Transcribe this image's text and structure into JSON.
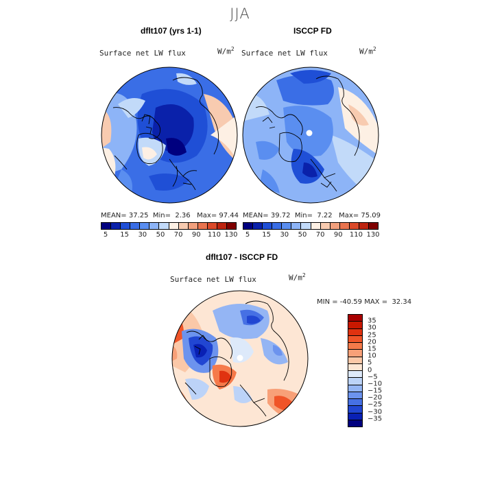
{
  "figure": {
    "season_title": "JJA"
  },
  "panels": [
    {
      "title": "dflt107 (yrs 1-1)",
      "field": "Surface net LW flux",
      "units": "W/m",
      "units_exp": "2",
      "stats": {
        "mean_label": "MEAN=",
        "mean": "37.25",
        "min_label": "Min=",
        "min": "2.36",
        "max_label": "Max=",
        "max": "97.44"
      }
    },
    {
      "title": "ISCCP FD",
      "field": "Surface net LW flux",
      "units": "W/m",
      "units_exp": "2",
      "stats": {
        "mean_label": "MEAN=",
        "mean": "39.72",
        "min_label": "Min=",
        "min": "7.22",
        "max_label": "Max=",
        "max": "75.09"
      }
    }
  ],
  "diff_panel": {
    "title": "dflt107 - ISCCP FD",
    "field": "Surface net LW flux",
    "units": "W/m",
    "units_exp": "2",
    "range_text": "MIN = -40.59 MAX =  32.34"
  },
  "colorbar_main": {
    "colors": [
      "#00007f",
      "#0a21aa",
      "#1f4fd6",
      "#3a6ee6",
      "#5a8ef0",
      "#8db4f7",
      "#c2daf9",
      "#fdf0e4",
      "#f8cbb0",
      "#f2a07d",
      "#ea744f",
      "#dc4a2a",
      "#bd2410",
      "#7f0000"
    ],
    "tick_labels": [
      "5",
      "15",
      "30",
      "50",
      "70",
      "90",
      "110",
      "130"
    ]
  },
  "colorbar_diff": {
    "colors_top_to_bottom": [
      "#a80000",
      "#c81800",
      "#e03210",
      "#f05428",
      "#f57a4a",
      "#f8a078",
      "#fbc8a8",
      "#fde6d4",
      "#dde9fa",
      "#bcd3f8",
      "#94b5f4",
      "#6c93ee",
      "#4670e4",
      "#2146d2",
      "#0920b4",
      "#00007f"
    ],
    "tick_labels": [
      "35",
      "30",
      "25",
      "20",
      "15",
      "10",
      "5",
      "0",
      "−5",
      "−10",
      "−15",
      "−20",
      "−25",
      "−30",
      "−35"
    ]
  }
}
